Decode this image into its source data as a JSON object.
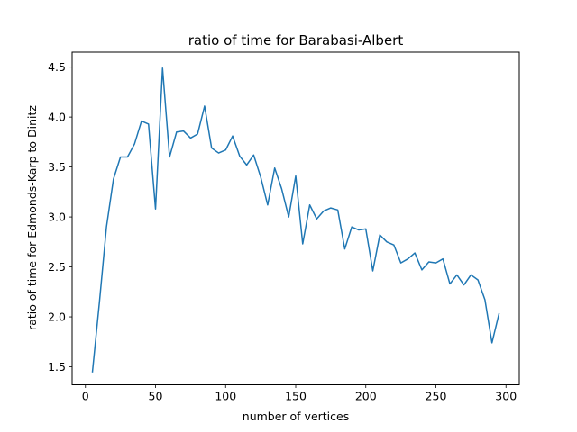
{
  "chart_data": {
    "type": "line",
    "title": "ratio of time for Barabasi-Albert",
    "xlabel": "number of vertices",
    "ylabel": "ratio of time for Edmonds-Karp to Dinitz",
    "xlim": [
      -9.5,
      309.5
    ],
    "ylim": [
      1.32,
      4.65
    ],
    "xticks": [
      0,
      50,
      100,
      150,
      200,
      250,
      300
    ],
    "xtick_labels": [
      "0",
      "50",
      "100",
      "150",
      "200",
      "250",
      "300"
    ],
    "yticks": [
      1.5,
      2.0,
      2.5,
      3.0,
      3.5,
      4.0,
      4.5
    ],
    "ytick_labels": [
      "1.5",
      "2.0",
      "2.5",
      "3.0",
      "3.5",
      "4.0",
      "4.5"
    ],
    "grid": false,
    "line_color": "#1f77b4",
    "series": [
      {
        "x": [
          5,
          10,
          15,
          20,
          25,
          30,
          35,
          40,
          45,
          50,
          55,
          60,
          65,
          70,
          75,
          80,
          85,
          90,
          95,
          100,
          105,
          110,
          115,
          120,
          125,
          130,
          135,
          140,
          145,
          150,
          155,
          160,
          165,
          170,
          175,
          180,
          185,
          190,
          195,
          200,
          205,
          210,
          215,
          220,
          225,
          230,
          235,
          240,
          245,
          250,
          255,
          260,
          265,
          270,
          275,
          280,
          285,
          290,
          295
        ],
        "values": [
          1.45,
          2.15,
          2.9,
          3.38,
          3.6,
          3.6,
          3.73,
          3.96,
          3.93,
          3.08,
          4.49,
          3.6,
          3.85,
          3.86,
          3.79,
          3.83,
          4.11,
          3.69,
          3.64,
          3.67,
          3.81,
          3.61,
          3.52,
          3.62,
          3.4,
          3.12,
          3.49,
          3.28,
          3.0,
          3.41,
          2.73,
          3.12,
          2.98,
          3.06,
          3.09,
          3.07,
          2.68,
          2.9,
          2.87,
          2.88,
          2.46,
          2.82,
          2.75,
          2.72,
          2.54,
          2.58,
          2.64,
          2.47,
          2.55,
          2.54,
          2.58,
          2.33,
          2.42,
          2.32,
          2.42,
          2.37,
          2.17,
          1.74,
          2.03
        ]
      }
    ]
  }
}
